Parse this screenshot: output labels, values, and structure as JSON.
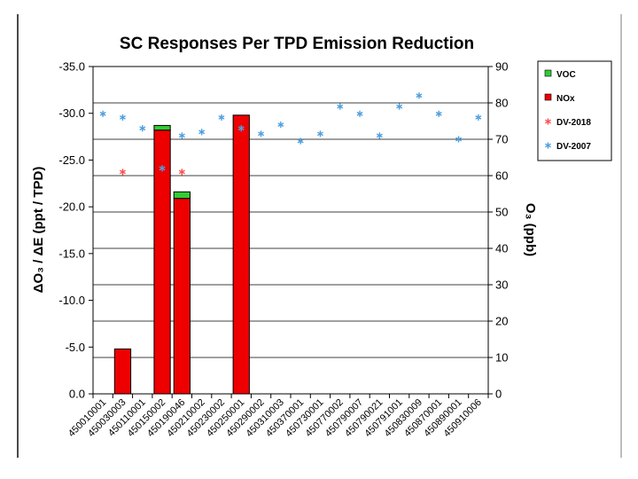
{
  "chart_data": {
    "type": "bar",
    "title": "SC Responses Per TPD Emission Reduction",
    "ylabel_left": "ΔO₃ / ΔE (ppt / TPD)",
    "ylabel_right": "O₃ (ppb)",
    "ylim_left": [
      -35.0,
      0.0
    ],
    "ylim_right": [
      0,
      90
    ],
    "left_ticks": [
      "-35.0",
      "-30.0",
      "-25.0",
      "-20.0",
      "-15.0",
      "-10.0",
      "-5.0",
      "0.0"
    ],
    "right_ticks": [
      "90",
      "80",
      "70",
      "60",
      "50",
      "40",
      "30",
      "20",
      "10",
      "0"
    ],
    "categories": [
      "450010001",
      "450030003",
      "450110001",
      "450150002",
      "450190046",
      "450210002",
      "450230002",
      "450250001",
      "450290002",
      "450310003",
      "450370001",
      "450730001",
      "450770002",
      "450790007",
      "450790021",
      "450791001",
      "450830009",
      "450870001",
      "450890001",
      "450910006"
    ],
    "bars": {
      "NOx": [
        0,
        -4.8,
        0,
        -28.2,
        -20.9,
        0,
        0,
        -29.8,
        0,
        0,
        0,
        0,
        0,
        0,
        0,
        0,
        0,
        0,
        0,
        0
      ],
      "VOC": [
        0,
        0,
        0,
        -0.5,
        -0.7,
        0,
        0,
        0,
        0,
        0,
        0,
        0,
        0,
        0,
        0,
        0,
        0,
        0,
        0,
        0
      ]
    },
    "points": {
      "DV-2018": [
        null,
        61,
        null,
        null,
        61,
        null,
        null,
        null,
        null,
        null,
        null,
        null,
        null,
        null,
        null,
        null,
        null,
        null,
        null,
        null
      ],
      "DV-2007": [
        77,
        76,
        73,
        62,
        71,
        72,
        76,
        73,
        71.5,
        74,
        69.5,
        71.5,
        79,
        77,
        71,
        79,
        82,
        77,
        70,
        76
      ]
    },
    "legend": [
      {
        "label": "VOC",
        "color": "#33cc33",
        "kind": "bar"
      },
      {
        "label": "NOx",
        "color": "#ee0000",
        "kind": "bar"
      },
      {
        "label": "DV-2018",
        "color": "#ff4d4d",
        "kind": "marker"
      },
      {
        "label": "DV-2007",
        "color": "#4f9fdf",
        "kind": "marker"
      }
    ],
    "legend_position": "top-right",
    "grid": true
  }
}
